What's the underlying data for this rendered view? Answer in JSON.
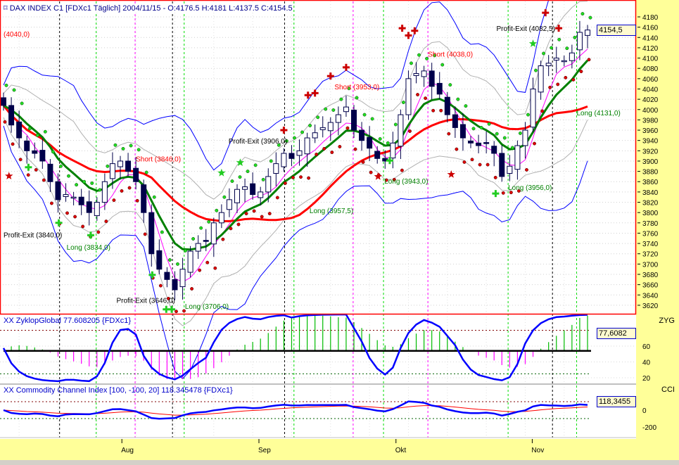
{
  "header": {
    "text": "DAX INDEX C1 [FDXc1  Täglich] 2004/11/15 - O:4176.5 H:4181 L:4137.5 C:4154.5"
  },
  "panels": {
    "zyklop_label": "XX ZyklopGlobal 77.608205 {FDXc1}",
    "zyklop_axis_name": "ZYG",
    "zyklop_value": "77,6082",
    "cci_label": "XX Commodity Channel Index [100, -100, 20] 118.345478 {FDXc1}",
    "cci_axis_name": "CCI",
    "cci_value": "118,3455",
    "price_value": "4154,5"
  },
  "colors": {
    "sma": "#ff0000",
    "ema": "#008000",
    "band": "#0000ff",
    "fast": "#ff00ff",
    "axis_bg": "#ffff99",
    "candle": "#00004a"
  },
  "chart_data": {
    "type": "candlestick",
    "title": "DAX INDEX C1 [FDXc1 Täglich]",
    "ylim": [
      3610,
      4195
    ],
    "yticks": [
      3620,
      3640,
      3660,
      3680,
      3700,
      3720,
      3740,
      3760,
      3780,
      3800,
      3820,
      3840,
      3860,
      3880,
      3900,
      3920,
      3940,
      3960,
      3980,
      4000,
      4020,
      4040,
      4060,
      4080,
      4100,
      4120,
      4140,
      4160,
      4180
    ],
    "close": [
      4008,
      3970,
      3945,
      3920,
      3915,
      3900,
      3860,
      3825,
      3835,
      3830,
      3815,
      3800,
      3820,
      3860,
      3895,
      3900,
      3880,
      3860,
      3800,
      3720,
      3690,
      3670,
      3650,
      3690,
      3725,
      3740,
      3745,
      3780,
      3800,
      3825,
      3845,
      3850,
      3835,
      3840,
      3870,
      3895,
      3915,
      3905,
      3920,
      3945,
      3955,
      3965,
      3975,
      3990,
      4005,
      3960,
      3940,
      3925,
      3905,
      3900,
      3935,
      3990,
      4060,
      4070,
      4075,
      4045,
      4030,
      3990,
      3965,
      3945,
      3935,
      3930,
      3935,
      3915,
      3870,
      3890,
      3930,
      3960,
      4040,
      4085,
      4090,
      4100,
      4095,
      4110,
      4150,
      4154.5
    ],
    "month_ticks": [
      {
        "label": "Aug",
        "bar": 15.2
      },
      {
        "label": "Sep",
        "bar": 32.8
      },
      {
        "label": "Okt",
        "bar": 50.4
      },
      {
        "label": "Nov",
        "bar": 67.9
      }
    ],
    "vlines": {
      "green": [
        11.9,
        23.2,
        37.3,
        48.8,
        64.8,
        73.6
      ],
      "black": [
        7.2,
        21.7,
        36.1,
        70.5
      ],
      "magenta": [
        16.9,
        44.9,
        54.5
      ]
    },
    "annotations": [
      {
        "text": "(4040,0)",
        "bar": 0,
        "price": 4142,
        "kind": "short"
      },
      {
        "text": "Short (3846,0)",
        "bar": 17,
        "price": 3899,
        "kind": "short"
      },
      {
        "text": "Profit-Exit (3840,0)",
        "bar": 0,
        "price": 3752,
        "kind": "exit"
      },
      {
        "text": "Long (3834,0)",
        "bar": 8.1,
        "price": 3728,
        "kind": "long"
      },
      {
        "text": "Profit-Exit (3646,0)",
        "bar": 14.5,
        "price": 3625,
        "kind": "exit"
      },
      {
        "text": "Long (3706,0)",
        "bar": 23.3,
        "price": 3613,
        "kind": "long"
      },
      {
        "text": "Profit-Exit (3906,0)",
        "bar": 28.9,
        "price": 3934,
        "kind": "exit"
      },
      {
        "text": "Short (3953,0)",
        "bar": 42.5,
        "price": 4039,
        "kind": "short"
      },
      {
        "text": "Long (3957,5)",
        "bar": 39.3,
        "price": 3799,
        "kind": "long"
      },
      {
        "text": "Long (3943,0)",
        "bar": 48.9,
        "price": 3856,
        "kind": "long"
      },
      {
        "text": "Short (4038,0)",
        "bar": 54.5,
        "price": 4103,
        "kind": "short"
      },
      {
        "text": "Profit-Exit (4082,5)",
        "bar": 63.3,
        "price": 4153,
        "kind": "exit"
      },
      {
        "text": "Long (4131,0)",
        "bar": 73.6,
        "price": 3989,
        "kind": "long"
      },
      {
        "text": "Long (3956,0)",
        "bar": 64.8,
        "price": 3844,
        "kind": "long"
      }
    ],
    "markers": [
      {
        "type": "red-cross",
        "bar": 36.0,
        "price": 3960
      },
      {
        "type": "red-cross",
        "bar": 39.1,
        "price": 4028
      },
      {
        "type": "red-cross",
        "bar": 40.0,
        "price": 4032
      },
      {
        "type": "red-cross",
        "bar": 42.0,
        "price": 4065
      },
      {
        "type": "red-cross",
        "bar": 44.0,
        "price": 4082
      },
      {
        "type": "red-cross",
        "bar": 51.2,
        "price": 4158
      },
      {
        "type": "red-cross",
        "bar": 52.0,
        "price": 4144
      },
      {
        "type": "red-cross",
        "bar": 52.8,
        "price": 4153
      },
      {
        "type": "red-cross",
        "bar": 69.6,
        "price": 4188
      },
      {
        "type": "red-cross",
        "bar": 71.3,
        "price": 4158
      },
      {
        "type": "green-cross",
        "bar": 3.2,
        "price": 3888
      },
      {
        "type": "green-cross",
        "bar": 7.1,
        "price": 3780
      },
      {
        "type": "green-cross",
        "bar": 11.2,
        "price": 3756
      },
      {
        "type": "green-cross",
        "bar": 19.1,
        "price": 3679
      },
      {
        "type": "green-cross",
        "bar": 20.9,
        "price": 3612
      },
      {
        "type": "green-cross",
        "bar": 21.6,
        "price": 3612
      },
      {
        "type": "green-cross",
        "bar": 49.6,
        "price": 3901
      },
      {
        "type": "green-cross",
        "bar": 63.2,
        "price": 3837
      },
      {
        "type": "red-star",
        "bar": 0.7,
        "price": 3871
      },
      {
        "type": "red-star",
        "bar": 48.1,
        "price": 3870
      },
      {
        "type": "red-star",
        "bar": 57.5,
        "price": 3874
      },
      {
        "type": "green-star",
        "bar": 28,
        "price": 3877
      },
      {
        "type": "green-star",
        "bar": 30.4,
        "price": 3897
      },
      {
        "type": "green-star",
        "bar": 68,
        "price": 4128
      }
    ],
    "zyklop": {
      "ylim": [
        0,
        100
      ],
      "yticks": [
        20,
        40,
        60
      ],
      "upper": 80,
      "lower": 25,
      "zero": 54
    },
    "cci": {
      "ylim": [
        -300,
        300
      ],
      "yticks": [
        0,
        -200
      ],
      "upper": 100,
      "lower": -100
    }
  }
}
